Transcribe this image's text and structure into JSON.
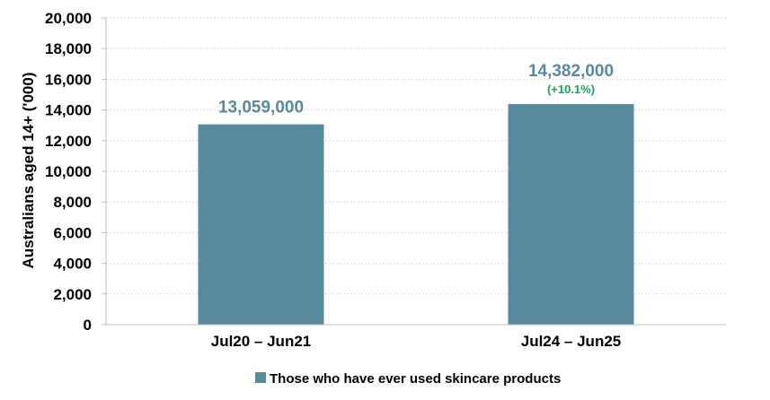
{
  "chart_data": {
    "type": "bar",
    "title": "",
    "xlabel": "",
    "ylabel": "Australians aged 14+ ('000)",
    "ylim": [
      0,
      20000
    ],
    "y_ticks": [
      0,
      2000,
      4000,
      6000,
      8000,
      10000,
      12000,
      14000,
      16000,
      18000,
      20000
    ],
    "y_tick_labels": [
      "0",
      "2,000",
      "4,000",
      "6,000",
      "8,000",
      "10,000",
      "12,000",
      "14,000",
      "16,000",
      "18,000",
      "20,000"
    ],
    "categories": [
      "Jul20 – Jun21",
      "Jul24 – Jun25"
    ],
    "series": [
      {
        "name": "Those who have ever used skincare products",
        "values": [
          13059,
          14382
        ],
        "data_labels": [
          "13,059,000",
          "14,382,000"
        ],
        "change_labels": [
          "",
          "(+10.1%)"
        ]
      }
    ],
    "grid": true,
    "legend_position": "bottom",
    "colors": {
      "bar": "#588a9e",
      "data_label": "#588a9e",
      "change_label": "#17a35a",
      "grid": "#d9d9d9",
      "axis": "#bfbfbf"
    }
  }
}
